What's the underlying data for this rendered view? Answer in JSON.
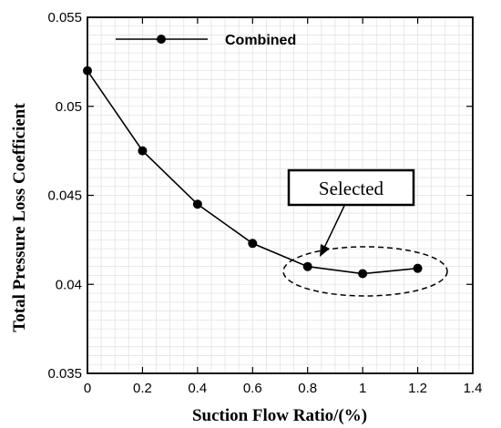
{
  "chart_data": {
    "type": "line",
    "xlabel": "Suction Flow Ratio/(%)",
    "ylabel": "Total Pressure Loss Coefficient",
    "xlim": [
      0,
      1.4
    ],
    "ylim": [
      0.035,
      0.055
    ],
    "xticks": [
      "0",
      "0.2",
      "0.4",
      "0.6",
      "0.8",
      "1",
      "1.2",
      "1.4"
    ],
    "yticks": [
      "0.035",
      "0.04",
      "0.045",
      "0.05",
      "0.055"
    ],
    "grid": true,
    "legend_position": "top-left",
    "series": [
      {
        "name": "Combined",
        "x": [
          0,
          0.2,
          0.4,
          0.6,
          0.8,
          1.0,
          1.2
        ],
        "y": [
          0.052,
          0.0475,
          0.0445,
          0.0423,
          0.041,
          0.0406,
          0.0409
        ]
      }
    ],
    "annotations": [
      {
        "text": "Selected",
        "highlight_x_range": [
          0.8,
          1.2
        ]
      }
    ]
  }
}
